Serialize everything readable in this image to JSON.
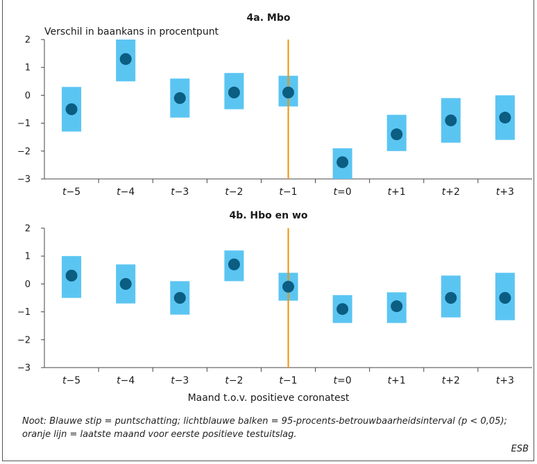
{
  "chart_data": [
    {
      "type": "errorbar",
      "title": "4a. Mbo",
      "ylabel": "Verschil in baankans in procentpunt",
      "xlabel": "",
      "ylim": [
        -3,
        2
      ],
      "yticks": [
        2,
        1,
        0,
        -1,
        -2,
        -3
      ],
      "ytick_labels": [
        "2",
        "1",
        "0",
        "−1",
        "−2",
        "−3"
      ],
      "categories": [
        {
          "prefix": "t",
          "suffix": "−5"
        },
        {
          "prefix": "t",
          "suffix": "−4"
        },
        {
          "prefix": "t",
          "suffix": "−3"
        },
        {
          "prefix": "t",
          "suffix": "−2"
        },
        {
          "prefix": "t",
          "suffix": "−1"
        },
        {
          "prefix": "t",
          "suffix": "=0"
        },
        {
          "prefix": "t",
          "suffix": "+1"
        },
        {
          "prefix": "t",
          "suffix": "+2"
        },
        {
          "prefix": "t",
          "suffix": "+3"
        }
      ],
      "estimates": [
        -0.5,
        1.3,
        -0.1,
        0.1,
        0.1,
        -2.4,
        -1.4,
        -0.9,
        -0.8
      ],
      "ci_low": [
        -1.3,
        0.5,
        -0.8,
        -0.5,
        -0.4,
        -3.0,
        -2.0,
        -1.7,
        -1.6
      ],
      "ci_high": [
        0.3,
        2.0,
        0.6,
        0.8,
        0.7,
        -1.9,
        -0.7,
        -0.1,
        0.0
      ],
      "vline_category_index": 4,
      "grid": false
    },
    {
      "type": "errorbar",
      "title": "4b. Hbo en wo",
      "ylabel": "",
      "xlabel": "Maand t.o.v. positieve coronatest",
      "ylim": [
        -3,
        2
      ],
      "yticks": [
        2,
        1,
        0,
        -1,
        -2,
        -3
      ],
      "ytick_labels": [
        "2",
        "1",
        "0",
        "−1",
        "−2",
        "−3"
      ],
      "categories": [
        {
          "prefix": "t",
          "suffix": "−5"
        },
        {
          "prefix": "t",
          "suffix": "−4"
        },
        {
          "prefix": "t",
          "suffix": "−3"
        },
        {
          "prefix": "t",
          "suffix": "−2"
        },
        {
          "prefix": "t",
          "suffix": "−1"
        },
        {
          "prefix": "t",
          "suffix": "=0"
        },
        {
          "prefix": "t",
          "suffix": "+1"
        },
        {
          "prefix": "t",
          "suffix": "+2"
        },
        {
          "prefix": "t",
          "suffix": "+3"
        }
      ],
      "estimates": [
        0.3,
        0.0,
        -0.5,
        0.7,
        -0.1,
        -0.9,
        -0.8,
        -0.5,
        -0.5
      ],
      "ci_low": [
        -0.5,
        -0.7,
        -1.1,
        0.1,
        -0.6,
        -1.4,
        -1.4,
        -1.2,
        -1.3
      ],
      "ci_high": [
        1.0,
        0.7,
        0.1,
        1.2,
        0.4,
        -0.4,
        -0.3,
        0.3,
        0.4
      ],
      "vline_category_index": 4,
      "grid": false
    }
  ],
  "colors": {
    "ci_bar": "#5bc5f2",
    "dot": "#0b5d82",
    "vline": "#f39200",
    "axis": "#444444"
  },
  "note": "Noot: Blauwe stip = puntschatting; lichtblauwe balken = 95-procents-betrouwbaarheidsinterval (p < 0,05); oranje lijn = laatste maand voor eerste positieve testuitslag.",
  "credit": "ESB"
}
